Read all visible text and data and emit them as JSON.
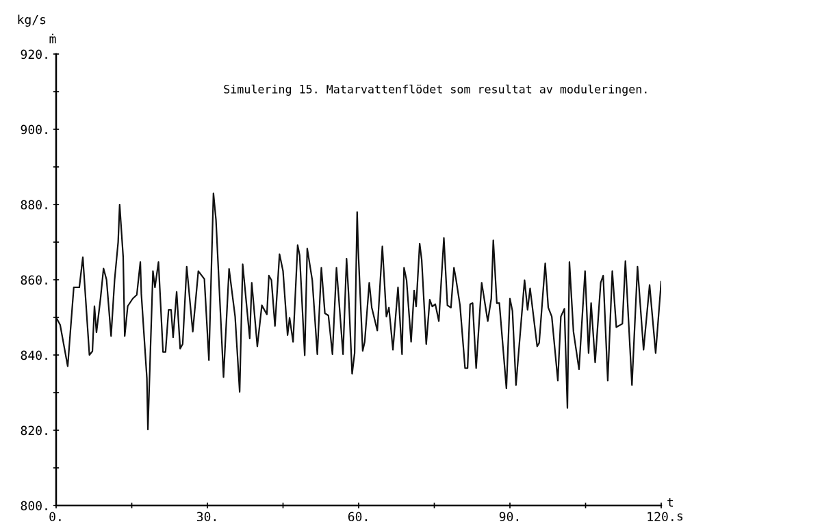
{
  "chart_data": {
    "type": "line",
    "title": "Simulering 15. Matarvattenflödet som resultat av moduleringen.",
    "xlabel": "t",
    "ylabel": "ṁ",
    "annotations": [
      "kg/s",
      "s"
    ],
    "xlim": [
      0,
      120
    ],
    "ylim": [
      800,
      920
    ],
    "xticks": [
      {
        "value": 0,
        "label": "0."
      },
      {
        "value": 15,
        "label": null
      },
      {
        "value": 30,
        "label": "30."
      },
      {
        "value": 45,
        "label": null
      },
      {
        "value": 60,
        "label": "60."
      },
      {
        "value": 75,
        "label": null
      },
      {
        "value": 90,
        "label": "90."
      },
      {
        "value": 105,
        "label": null
      },
      {
        "value": 120,
        "label": "120."
      }
    ],
    "yticks": [
      {
        "value": 800,
        "label": "800."
      },
      {
        "value": 810,
        "label": null
      },
      {
        "value": 820,
        "label": "820."
      },
      {
        "value": 830,
        "label": null
      },
      {
        "value": 840,
        "label": "840."
      },
      {
        "value": 850,
        "label": null
      },
      {
        "value": 860,
        "label": "860."
      },
      {
        "value": 870,
        "label": null
      },
      {
        "value": 880,
        "label": "880."
      },
      {
        "value": 890,
        "label": null
      },
      {
        "value": 900,
        "label": "900."
      },
      {
        "value": 910,
        "label": null
      },
      {
        "value": 920,
        "label": "920."
      }
    ],
    "grid": false,
    "legend": false,
    "marker": "none",
    "line_style": "solid",
    "series": [
      {
        "color": "#111111",
        "x": [
          0,
          0.8,
          2.3,
          3.5,
          4.6,
          5.3,
          6.6,
          7.2,
          7.6,
          8.0,
          8.8,
          9.4,
          10.0,
          10.9,
          11.6,
          12.3,
          12.6,
          13.3,
          13.6,
          14.2,
          15.2,
          16.0,
          16.7,
          16.9,
          18.0,
          18.2,
          19.2,
          19.6,
          20.3,
          21.2,
          21.7,
          22.3,
          22.8,
          23.2,
          23.9,
          24.6,
          25.1,
          25.9,
          27.1,
          28.2,
          29.4,
          30.3,
          31.2,
          31.7,
          33.2,
          34.3,
          35.5,
          36.4,
          37.0,
          38.4,
          38.8,
          39.9,
          40.8,
          41.8,
          42.2,
          42.7,
          43.4,
          44.3,
          45.0,
          45.9,
          46.3,
          47.0,
          47.9,
          48.3,
          49.3,
          49.8,
          50.8,
          51.8,
          52.6,
          53.3,
          54.0,
          54.8,
          55.6,
          56.9,
          57.6,
          58.0,
          58.7,
          59.2,
          59.7,
          59.9,
          60.8,
          61.2,
          62.1,
          62.6,
          63.7,
          64.7,
          65.5,
          66.0,
          66.8,
          67.8,
          68.6,
          69.0,
          69.5,
          70.4,
          71.0,
          71.4,
          72.1,
          72.5,
          73.4,
          74.1,
          74.6,
          75.2,
          75.9,
          76.9,
          77.6,
          78.3,
          78.9,
          79.3,
          80.1,
          81.1,
          81.6,
          82.1,
          82.6,
          83.3,
          84.4,
          85.6,
          86.3,
          86.7,
          87.4,
          87.9,
          89.3,
          90.0,
          90.5,
          91.2,
          92.9,
          93.5,
          94.0,
          95.4,
          95.8,
          97.0,
          97.6,
          98.3,
          99.5,
          100.1,
          100.8,
          101.4,
          101.8,
          102.6,
          103.7,
          104.9,
          105.6,
          106.1,
          106.9,
          108.0,
          108.5,
          109.4,
          110.3,
          111.1,
          112.3,
          112.9,
          114.2,
          115.3,
          116.5,
          117.7,
          118.9,
          120.0
        ],
        "values": [
          850,
          848,
          837,
          858,
          858,
          866,
          840,
          841,
          853,
          846,
          855,
          863,
          860,
          845,
          860,
          870,
          880,
          866,
          845,
          853,
          855,
          856,
          864.7,
          856.2,
          833.8,
          820.2,
          862.3,
          858.0,
          864.7,
          840.8,
          840.8,
          852.0,
          852.0,
          844.7,
          856.8,
          841.7,
          842.9,
          863.5,
          846.2,
          862.3,
          860.2,
          838.6,
          883,
          876,
          834.1,
          862.9,
          850.2,
          830.2,
          864.1,
          844.4,
          859.2,
          842.3,
          853.2,
          850.8,
          861.1,
          859.9,
          847.7,
          866.8,
          862.3,
          845.3,
          849.9,
          843.5,
          869.2,
          866.5,
          839.9,
          868.3,
          859.9,
          840.2,
          863.2,
          851.1,
          850.5,
          840.2,
          863.2,
          840.2,
          865.6,
          856.2,
          835.0,
          840.5,
          878,
          868.3,
          841.1,
          843.5,
          859.2,
          852.6,
          846.5,
          868.9,
          850.2,
          852.6,
          841.4,
          858.0,
          840.2,
          863.2,
          859.9,
          843.5,
          857.1,
          852.9,
          869.6,
          865.3,
          842.9,
          854.7,
          852.9,
          853.5,
          849.0,
          871.1,
          853.2,
          852.6,
          863.2,
          860.2,
          853.2,
          836.5,
          836.5,
          853.5,
          853.8,
          836.5,
          859.2,
          849.0,
          855.0,
          870.5,
          853.8,
          853.8,
          831.1,
          855.0,
          851.7,
          832.0,
          859.9,
          852.0,
          857.7,
          842.3,
          843.2,
          864.4,
          852.6,
          850.2,
          833.2,
          850.2,
          852.3,
          825.9,
          864.7,
          846.2,
          836.2,
          862.3,
          840.5,
          853.8,
          838.0,
          859.2,
          861.1,
          833.2,
          862.3,
          847.4,
          848.3,
          865.0,
          832.0,
          863.5,
          841.4,
          858.6,
          840.5,
          859.5
        ]
      }
    ]
  }
}
